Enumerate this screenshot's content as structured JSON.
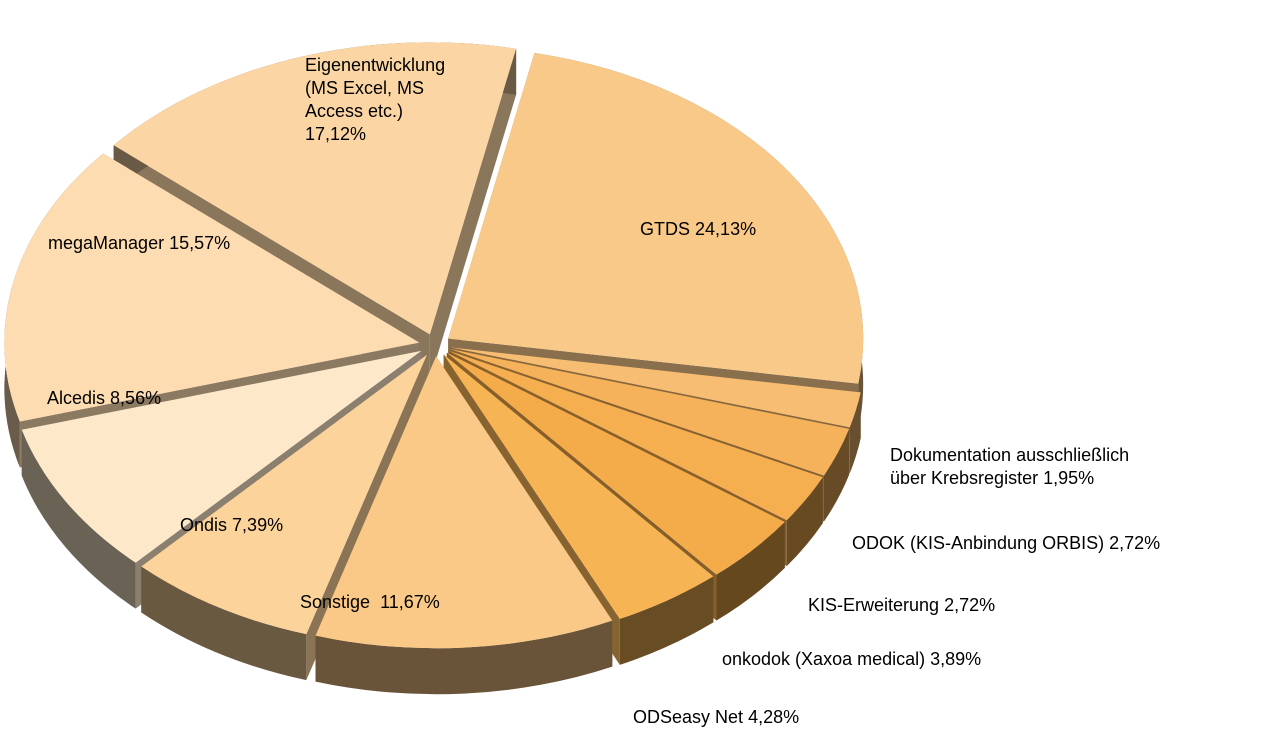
{
  "chart_data": {
    "type": "pie3d",
    "categories": [
      "GTDS",
      "Dokumentation ausschließlich über Krebsregister",
      "ODOK (KIS-Anbindung ORBIS)",
      "KIS-Erweiterung",
      "onkodok (Xaxoa medical)",
      "ODSeasy Net",
      "Sonstige ",
      "Ondis",
      "Alcedis",
      "megaManager",
      "Eigenentwicklung (MS Excel, MS Access etc.)"
    ],
    "values": [
      24.13,
      1.95,
      2.72,
      2.72,
      3.89,
      4.28,
      11.67,
      7.39,
      8.56,
      15.57,
      17.12
    ],
    "value_labels": [
      "24,13%",
      "1,95%",
      "2,72%",
      "2,72%",
      "3,89%",
      "4,28%",
      "11,67%",
      "7,39%",
      "8,56%",
      "15,57%",
      "17,12%"
    ],
    "colors": [
      "#f9c98a",
      "#f7bd73",
      "#f5b25a",
      "#f5ae50",
      "#f4ab4a",
      "#f6b455",
      "#fbc987",
      "#fcd39b",
      "#fde9ca",
      "#fcdcb0",
      "#fbd6a4"
    ]
  }
}
